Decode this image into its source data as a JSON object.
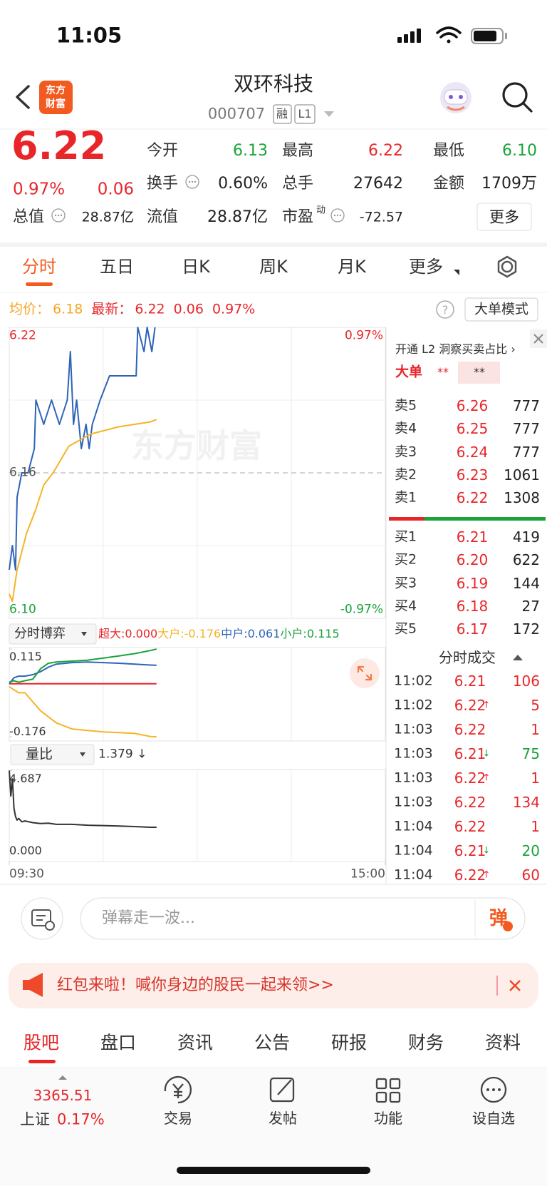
{
  "status_bar": {
    "time": "11:05"
  },
  "header": {
    "logo_lines": [
      "东方",
      "财富"
    ],
    "title": "双环科技",
    "code": "000707",
    "badges": [
      "融",
      "L1"
    ]
  },
  "quote": {
    "price": "6.22",
    "change_pct": "0.97%",
    "change": "0.06",
    "fields": [
      {
        "label": "今开",
        "value": "6.13",
        "color": "#1aa33a"
      },
      {
        "label": "最高",
        "value": "6.22",
        "color": "#e8262a"
      },
      {
        "label": "最低",
        "value": "6.10",
        "color": "#1aa33a"
      },
      {
        "label": "换手",
        "value": "0.60%",
        "color": "#222222"
      },
      {
        "label": "总手",
        "value": "27642",
        "color": "#222222"
      },
      {
        "label": "金额",
        "value": "1709万",
        "color": "#222222"
      },
      {
        "label": "总值",
        "value": "28.87亿",
        "color": "#222222"
      },
      {
        "label": "流值",
        "value": "28.87亿",
        "color": "#222222"
      },
      {
        "label": "市盈",
        "sup": "动",
        "value": "-72.57",
        "color": "#222222"
      }
    ],
    "more_button": "更多"
  },
  "chart_tabs": {
    "items": [
      "分时",
      "五日",
      "日K",
      "周K",
      "月K",
      "更多"
    ],
    "active": 0
  },
  "info_bar": {
    "avg_label": "均价：",
    "avg": "6.18",
    "latest_label": "最新：",
    "latest": "6.22",
    "change": "0.06",
    "change_pct": "0.97%",
    "mode_button": "大单模式"
  },
  "intraday_chart": {
    "watermark": "东方财富",
    "xlim": [
      0,
      240
    ],
    "xticks": [
      {
        "value": 0,
        "label": "09:30"
      },
      {
        "value": 240,
        "label": "15:00"
      }
    ],
    "ylim": [
      6.1,
      6.22
    ],
    "yticks": [
      6.22,
      6.16,
      {
        "value": 6.1,
        "label": "6.10"
      }
    ],
    "y2lim": [
      -0.97,
      0.97
    ],
    "y2ticks": [
      {
        "value": 0.97,
        "label": "0.97%"
      },
      {
        "value": -0.97,
        "label": "-0.97%"
      }
    ],
    "series": [
      {
        "color": "#2d64b8",
        "x": [
          0,
          2,
          4,
          5,
          8,
          12,
          16,
          17,
          22,
          27,
          32,
          37,
          39,
          41,
          43,
          46,
          49,
          51,
          53,
          58,
          64,
          70,
          76,
          81,
          82,
          86,
          88,
          91,
          93
        ],
        "values": [
          6.12,
          6.13,
          6.12,
          6.15,
          6.16,
          6.16,
          6.17,
          6.19,
          6.18,
          6.19,
          6.18,
          6.19,
          6.21,
          6.18,
          6.19,
          6.17,
          6.18,
          6.17,
          6.18,
          6.19,
          6.2,
          6.2,
          6.2,
          6.2,
          6.22,
          6.21,
          6.22,
          6.21,
          6.22
        ]
      },
      {
        "color": "#f5b427",
        "x": [
          0,
          2,
          5,
          11,
          17,
          22,
          28,
          38,
          52,
          70,
          90,
          94
        ],
        "values": [
          6.11,
          6.107,
          6.12,
          6.135,
          6.145,
          6.155,
          6.16,
          6.171,
          6.176,
          6.179,
          6.181,
          6.182
        ]
      }
    ]
  },
  "game_indicator": {
    "selector": "分时博弈",
    "items": [
      {
        "label": "超大:",
        "value": "0.000",
        "color": "#e8262a"
      },
      {
        "label": "大户:",
        "value": "-0.176",
        "color": "#f5b427"
      },
      {
        "label": "中户:",
        "value": "0.061",
        "color": "#2d64b8"
      },
      {
        "label": "小户:",
        "value": "0.115",
        "color": "#1aa33a"
      }
    ],
    "ylim": [
      -0.19,
      0.12
    ],
    "yticks": [
      0.115,
      -0.176
    ],
    "x": [
      0,
      3,
      6,
      10,
      15,
      20,
      25,
      30,
      40,
      50,
      60,
      70,
      80,
      90,
      94
    ],
    "series": [
      {
        "color": "#e8262a",
        "values": [
          0,
          0,
          0,
          0,
          0,
          0,
          0,
          0,
          0,
          0,
          0,
          0,
          0,
          0,
          0
        ]
      },
      {
        "color": "#f5b427",
        "values": [
          -0.01,
          -0.02,
          -0.03,
          -0.03,
          -0.06,
          -0.09,
          -0.11,
          -0.13,
          -0.15,
          -0.155,
          -0.16,
          -0.162,
          -0.165,
          -0.175,
          -0.176
        ]
      },
      {
        "color": "#2d64b8",
        "values": [
          0.0,
          0.02,
          0.025,
          0.025,
          0.03,
          0.04,
          0.055,
          0.065,
          0.07,
          0.072,
          0.07,
          0.068,
          0.065,
          0.062,
          0.061
        ]
      },
      {
        "color": "#1aa33a",
        "values": [
          0.005,
          0.01,
          0.005,
          0.01,
          0.015,
          0.05,
          0.068,
          0.072,
          0.075,
          0.078,
          0.085,
          0.092,
          0.1,
          0.11,
          0.115
        ]
      }
    ]
  },
  "volume_ratio": {
    "selector": "量比",
    "value": "1.379 ↓",
    "ylim": [
      -0.62,
      4.75
    ],
    "yticks": [
      4.687,
      {
        "value": 0,
        "label": "0.000"
      }
    ],
    "x": [
      0,
      1,
      2,
      3,
      4,
      5,
      6,
      8,
      10,
      15,
      20,
      25,
      30,
      40,
      50,
      60,
      70,
      80,
      90,
      94
    ],
    "color": "#333333",
    "values": [
      4.687,
      3.2,
      4.2,
      2.5,
      2.0,
      1.8,
      1.9,
      1.7,
      1.75,
      1.65,
      1.6,
      1.62,
      1.55,
      1.55,
      1.5,
      1.48,
      1.45,
      1.42,
      1.38,
      1.379
    ]
  },
  "order_book": {
    "promo": "开通 L2 洞察买卖占比 ›",
    "big_order_label": "大单",
    "big_order_values": [
      "**",
      "**"
    ],
    "asks": [
      [
        "卖5",
        "6.26",
        "777"
      ],
      [
        "卖4",
        "6.25",
        "777"
      ],
      [
        "卖3",
        "6.24",
        "777"
      ],
      [
        "卖2",
        "6.23",
        "1061"
      ],
      [
        "卖1",
        "6.22",
        "1308"
      ]
    ],
    "bids": [
      [
        "买1",
        "6.21",
        "419"
      ],
      [
        "买2",
        "6.20",
        "622"
      ],
      [
        "买3",
        "6.19",
        "144"
      ],
      [
        "买4",
        "6.18",
        "27"
      ],
      [
        "买5",
        "6.17",
        "172"
      ]
    ]
  },
  "trades": {
    "title": "分时成交",
    "rows": [
      {
        "time": "11:02",
        "price": "6.21",
        "volume": "106",
        "color": "#e8262a"
      },
      {
        "time": "11:02",
        "price": "6.22",
        "arrow": "↑",
        "volume": "5",
        "color": "#e8262a"
      },
      {
        "time": "11:03",
        "price": "6.22",
        "volume": "1",
        "color": "#e8262a"
      },
      {
        "time": "11:03",
        "price": "6.21",
        "arrow": "↓",
        "volume": "75",
        "color": "#1aa33a"
      },
      {
        "time": "11:03",
        "price": "6.22",
        "arrow": "↑",
        "volume": "1",
        "color": "#e8262a"
      },
      {
        "time": "11:03",
        "price": "6.22",
        "volume": "134",
        "color": "#e8262a"
      },
      {
        "time": "11:04",
        "price": "6.22",
        "volume": "1",
        "color": "#e8262a"
      },
      {
        "time": "11:04",
        "price": "6.21",
        "arrow": "↓",
        "volume": "20",
        "color": "#1aa33a"
      },
      {
        "time": "11:04",
        "price": "6.22",
        "arrow": "↑",
        "volume": "60",
        "color": "#e8262a"
      }
    ]
  },
  "danmaku": {
    "placeholder": "弹幕走一波...",
    "button": "弹"
  },
  "banner": {
    "text": "红包来啦！喊你身边的股民一起来领>>"
  },
  "section_tabs": {
    "items": [
      "股吧",
      "盘口",
      "资讯",
      "公告",
      "研报",
      "财务",
      "资料"
    ],
    "active": 0
  },
  "bottom_nav": {
    "index": {
      "value": "3365.51",
      "name": "上证",
      "change": "0.17%"
    },
    "items": [
      "交易",
      "发帖",
      "功能",
      "设自选"
    ]
  }
}
